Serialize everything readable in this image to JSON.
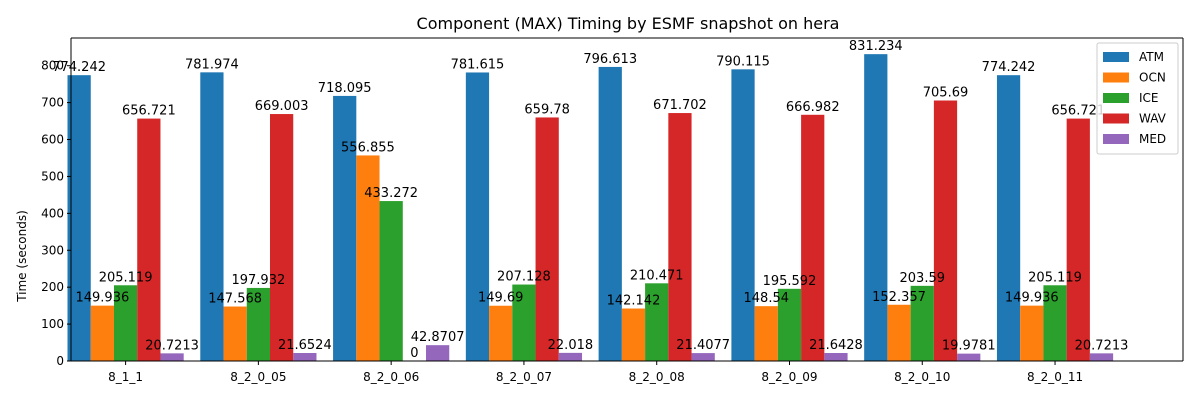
{
  "chart_data": {
    "type": "bar",
    "title": "Component (MAX) Timing by ESMF snapshot on hera",
    "xlabel": "",
    "ylabel": "Time (seconds)",
    "ylim": [
      0,
      875
    ],
    "yticks": [
      0,
      100,
      200,
      300,
      400,
      500,
      600,
      700,
      800
    ],
    "categories": [
      "8_1_1",
      "8_2_0_05",
      "8_2_0_06",
      "8_2_0_07",
      "8_2_0_08",
      "8_2_0_09",
      "8_2_0_10",
      "8_2_0_11"
    ],
    "series": [
      {
        "name": "ATM",
        "color": "#1f77b4",
        "values": [
          774.242,
          781.974,
          718.095,
          781.615,
          796.613,
          790.115,
          831.234,
          774.242
        ]
      },
      {
        "name": "OCN",
        "color": "#ff7f0e",
        "values": [
          149.936,
          147.568,
          556.855,
          149.69,
          142.142,
          148.54,
          152.357,
          149.936
        ]
      },
      {
        "name": "ICE",
        "color": "#2ca02c",
        "values": [
          205.119,
          197.932,
          433.272,
          207.128,
          210.471,
          195.592,
          203.59,
          205.119
        ]
      },
      {
        "name": "WAV",
        "color": "#d62728",
        "values": [
          656.721,
          669.003,
          0,
          659.78,
          671.702,
          666.982,
          705.69,
          656.721
        ]
      },
      {
        "name": "MED",
        "color": "#9467bd",
        "values": [
          20.7213,
          21.6524,
          42.8707,
          22.018,
          21.4077,
          21.6428,
          19.9781,
          20.7213
        ]
      }
    ],
    "legend": "top-right",
    "grid": false
  }
}
